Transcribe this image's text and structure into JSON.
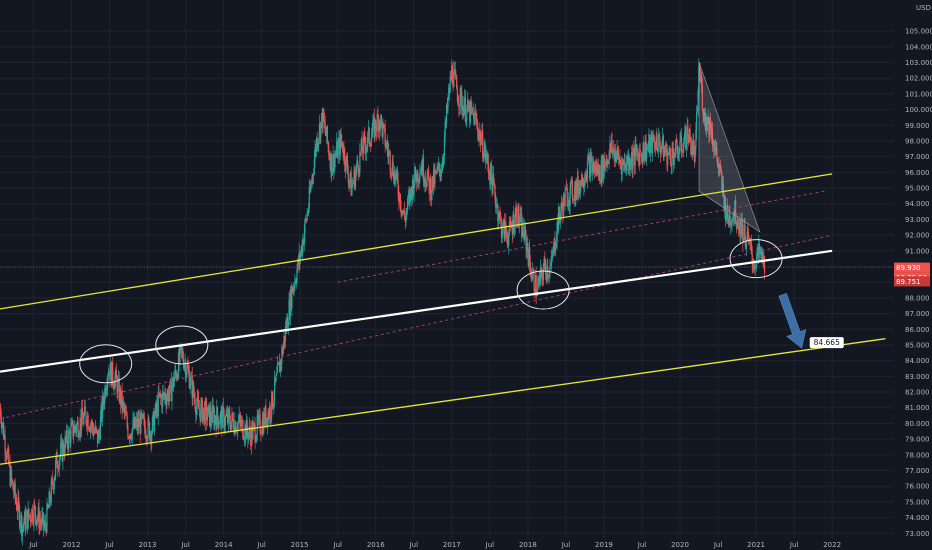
{
  "chart_data": {
    "type": "candlestick",
    "currency": "USD",
    "y_ticks": [
      "73.000",
      "74.000",
      "75.000",
      "76.000",
      "77.000",
      "78.000",
      "79.000",
      "80.000",
      "81.000",
      "82.000",
      "83.000",
      "84.000",
      "85.000",
      "86.000",
      "87.000",
      "88.000",
      "89.000",
      "90.000",
      "91.000",
      "92.000",
      "93.000",
      "94.000",
      "95.000",
      "96.000",
      "97.000",
      "98.000",
      "99.000",
      "100.000",
      "101.000",
      "102.000",
      "103.000",
      "104.000",
      "105.000"
    ],
    "ylim": [
      72.7,
      106.6
    ],
    "x_ticks": [
      {
        "label": "Jul",
        "x": 2011.5
      },
      {
        "label": "2012",
        "x": 2012.0
      },
      {
        "label": "Jul",
        "x": 2012.5
      },
      {
        "label": "2013",
        "x": 2013.0
      },
      {
        "label": "Jul",
        "x": 2013.5
      },
      {
        "label": "2014",
        "x": 2014.0
      },
      {
        "label": "Jul",
        "x": 2014.5
      },
      {
        "label": "2015",
        "x": 2015.0
      },
      {
        "label": "Jul",
        "x": 2015.5
      },
      {
        "label": "2016",
        "x": 2016.0
      },
      {
        "label": "Jul",
        "x": 2016.5
      },
      {
        "label": "2017",
        "x": 2017.0
      },
      {
        "label": "Jul",
        "x": 2017.5
      },
      {
        "label": "2018",
        "x": 2018.0
      },
      {
        "label": "Jul",
        "x": 2018.5
      },
      {
        "label": "2019",
        "x": 2019.0
      },
      {
        "label": "Jul",
        "x": 2019.5
      },
      {
        "label": "2020",
        "x": 2020.0
      },
      {
        "label": "Jul",
        "x": 2020.5
      },
      {
        "label": "2021",
        "x": 2021.0
      },
      {
        "label": "Jul",
        "x": 2021.5
      },
      {
        "label": "2022",
        "x": 2022.0
      }
    ],
    "xlim": [
      2011.06,
      2022.8
    ],
    "price_path": [
      [
        2011.06,
        81.0
      ],
      [
        2011.2,
        76.5
      ],
      [
        2011.35,
        73.5
      ],
      [
        2011.5,
        74.5
      ],
      [
        2011.65,
        73.3
      ],
      [
        2011.8,
        77.5
      ],
      [
        2012.0,
        79.5
      ],
      [
        2012.2,
        80.5
      ],
      [
        2012.35,
        79.0
      ],
      [
        2012.48,
        83.6
      ],
      [
        2012.6,
        82.5
      ],
      [
        2012.75,
        79.5
      ],
      [
        2012.9,
        80.0
      ],
      [
        2013.05,
        79.5
      ],
      [
        2013.15,
        81.5
      ],
      [
        2013.3,
        82.0
      ],
      [
        2013.45,
        84.5
      ],
      [
        2013.55,
        83.0
      ],
      [
        2013.65,
        81.0
      ],
      [
        2013.8,
        80.5
      ],
      [
        2014.0,
        80.3
      ],
      [
        2014.2,
        80.0
      ],
      [
        2014.35,
        79.3
      ],
      [
        2014.5,
        80.0
      ],
      [
        2014.62,
        81.0
      ],
      [
        2014.75,
        84.0
      ],
      [
        2014.9,
        88.5
      ],
      [
        2015.0,
        90.5
      ],
      [
        2015.12,
        94.0
      ],
      [
        2015.22,
        98.0
      ],
      [
        2015.3,
        99.5
      ],
      [
        2015.42,
        96.5
      ],
      [
        2015.55,
        98.0
      ],
      [
        2015.68,
        95.0
      ],
      [
        2015.82,
        97.5
      ],
      [
        2015.95,
        98.5
      ],
      [
        2016.05,
        99.5
      ],
      [
        2016.15,
        97.5
      ],
      [
        2016.27,
        95.5
      ],
      [
        2016.38,
        93.0
      ],
      [
        2016.5,
        95.5
      ],
      [
        2016.6,
        96.5
      ],
      [
        2016.72,
        95.0
      ],
      [
        2016.87,
        96.5
      ],
      [
        2016.95,
        100.5
      ],
      [
        2017.0,
        102.5
      ],
      [
        2017.08,
        101.0
      ],
      [
        2017.18,
        100.0
      ],
      [
        2017.3,
        99.5
      ],
      [
        2017.42,
        97.5
      ],
      [
        2017.55,
        95.0
      ],
      [
        2017.65,
        92.5
      ],
      [
        2017.75,
        92.0
      ],
      [
        2017.85,
        93.5
      ],
      [
        2017.98,
        91.5
      ],
      [
        2018.05,
        89.5
      ],
      [
        2018.12,
        88.5
      ],
      [
        2018.22,
        90.0
      ],
      [
        2018.3,
        89.8
      ],
      [
        2018.4,
        93.0
      ],
      [
        2018.5,
        94.5
      ],
      [
        2018.65,
        95.0
      ],
      [
        2018.8,
        96.5
      ],
      [
        2018.95,
        96.0
      ],
      [
        2019.1,
        97.5
      ],
      [
        2019.25,
        96.5
      ],
      [
        2019.4,
        97.0
      ],
      [
        2019.55,
        97.5
      ],
      [
        2019.7,
        98.0
      ],
      [
        2019.85,
        97.0
      ],
      [
        2020.0,
        97.5
      ],
      [
        2020.1,
        98.5
      ],
      [
        2020.2,
        97.0
      ],
      [
        2020.25,
        102.8
      ],
      [
        2020.32,
        99.5
      ],
      [
        2020.4,
        99.0
      ],
      [
        2020.52,
        96.0
      ],
      [
        2020.62,
        93.0
      ],
      [
        2020.72,
        93.5
      ],
      [
        2020.8,
        92.5
      ],
      [
        2020.9,
        91.5
      ],
      [
        2020.97,
        90.2
      ],
      [
        2021.05,
        90.8
      ],
      [
        2021.12,
        90.0
      ]
    ],
    "last_price": "89.930",
    "countdown": "13:35:51",
    "prev_close": "89.751",
    "target_label": "84.665",
    "colors": {
      "background": "#131722",
      "up": "#26a69a",
      "down": "#ef5350",
      "channel": "#e6e63a",
      "midline": "#ffffff",
      "dashed": "#b0407a",
      "arrow": "#3d6fa6"
    },
    "lines": {
      "upper_channel": [
        [
          2011.06,
          87.3
        ],
        [
          2022.0,
          95.9
        ]
      ],
      "lower_channel": [
        [
          2011.06,
          77.4
        ],
        [
          2022.7,
          85.4
        ]
      ],
      "midline": [
        [
          2011.06,
          83.3
        ],
        [
          2022.0,
          91.0
        ]
      ],
      "dashed_upper": [
        [
          2011.06,
          80.3
        ],
        [
          2022.0,
          92.0
        ]
      ],
      "dashed_mid": [
        [
          2015.5,
          89.0
        ],
        [
          2021.9,
          94.8
        ]
      ],
      "target_arrow": [
        [
          2021.35,
          88.2
        ],
        [
          2021.6,
          84.8
        ]
      ]
    },
    "circles": [
      [
        2012.45,
        83.8
      ],
      [
        2013.45,
        85.0
      ],
      [
        2018.2,
        88.5
      ],
      [
        2021.0,
        90.5
      ]
    ],
    "triangle": [
      [
        2020.25,
        103.0
      ],
      [
        2020.25,
        94.8
      ],
      [
        2021.05,
        92.2
      ]
    ]
  }
}
